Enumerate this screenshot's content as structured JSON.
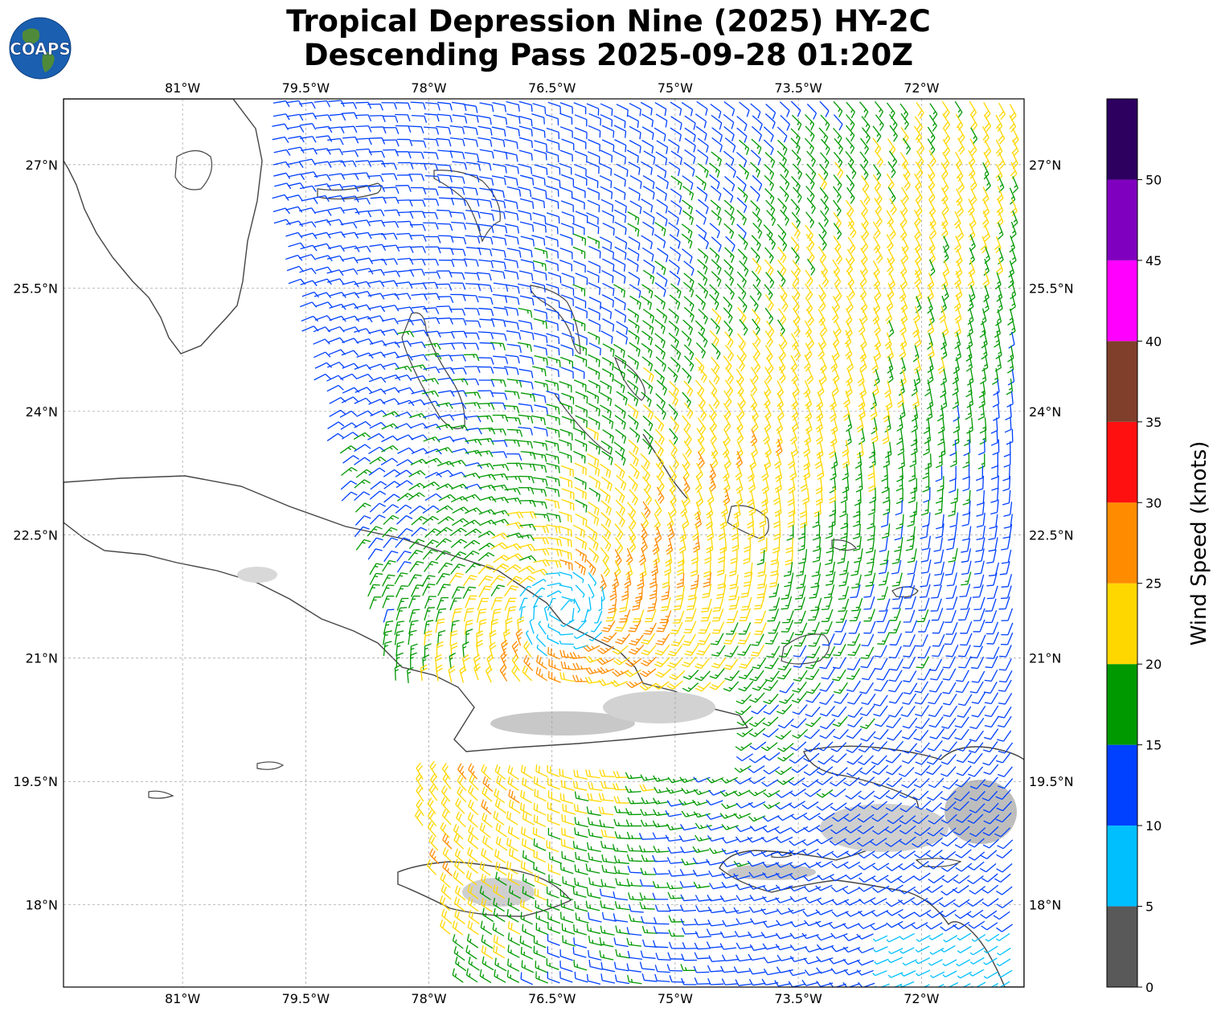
{
  "header": {
    "title_line1": "Tropical Depression Nine (2025) HY-2C",
    "title_line2": "Descending Pass 2025-09-28 01:20Z",
    "logo_text": "COAPS"
  },
  "map": {
    "lon_ticks": [
      "81°W",
      "79.5°W",
      "78°W",
      "76.5°W",
      "75°W",
      "73.5°W",
      "72°W"
    ],
    "lat_ticks": [
      "27°N",
      "25.5°N",
      "24°N",
      "22.5°N",
      "21°N",
      "19.5°N",
      "18°N"
    ],
    "lon_values": [
      -81,
      -79.5,
      -78,
      -76.5,
      -75,
      -73.5,
      -72
    ],
    "lat_values": [
      27,
      25.5,
      24,
      22.5,
      21,
      19.5,
      18
    ],
    "lon_range": [
      -82.45,
      -70.75
    ],
    "lat_range": [
      17.0,
      27.8
    ],
    "land_color": "#ffffff",
    "coast_color": "#444444",
    "grid": true
  },
  "colorbar": {
    "label": "Wind Speed (knots)",
    "tick_labels": [
      "0",
      "5",
      "10",
      "15",
      "20",
      "25",
      "30",
      "35",
      "40",
      "45",
      "50"
    ],
    "bins": [
      {
        "min": 0,
        "max": 5,
        "color": "#595959"
      },
      {
        "min": 5,
        "max": 10,
        "color": "#00bfff"
      },
      {
        "min": 10,
        "max": 15,
        "color": "#0040ff"
      },
      {
        "min": 15,
        "max": 20,
        "color": "#009900"
      },
      {
        "min": 20,
        "max": 25,
        "color": "#ffd700"
      },
      {
        "min": 25,
        "max": 30,
        "color": "#ff8c00"
      },
      {
        "min": 30,
        "max": 35,
        "color": "#ff1010"
      },
      {
        "min": 35,
        "max": 40,
        "color": "#7f3f2b"
      },
      {
        "min": 40,
        "max": 45,
        "color": "#ff00ff"
      },
      {
        "min": 45,
        "max": 50,
        "color": "#8000bf"
      },
      {
        "min": 50,
        "max": 55,
        "color": "#2d0060"
      }
    ]
  }
}
